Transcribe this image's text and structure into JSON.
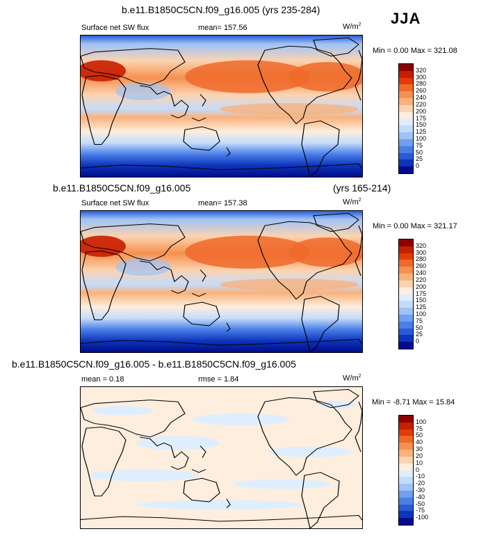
{
  "season": "JJA",
  "units_base": "W/m",
  "units_exp": "2",
  "panel1": {
    "title": "b.e11.B1850C5CN.f09_g16.005 (yrs 235-284)",
    "variable": "Surface net SW flux",
    "mean": "mean= 157.56",
    "minmax": "Min =   0.00 Max = 321.08"
  },
  "panel2": {
    "title_left": "b.e11.B1850C5CN.f09_g16.005",
    "title_right": "(yrs 165-214)",
    "variable": "Surface net SW flux",
    "mean": "mean= 157.38",
    "minmax": "Min =   0.00 Max = 321.17"
  },
  "panel3": {
    "title": "b.e11.B1850C5CN.f09_g16.005 - b.e11.B1850C5CN.f09_g16.005",
    "mean": "mean =   0.18",
    "rmse": "rmse =   1.84",
    "minmax": "Min =  -8.71 Max =  15.84"
  },
  "colorbar_abs": {
    "labels": [
      "320",
      "300",
      "280",
      "260",
      "240",
      "220",
      "200",
      "175",
      "150",
      "125",
      "100",
      "75",
      "50",
      "25",
      "0"
    ],
    "colors": [
      "#8b0000",
      "#c81e00",
      "#e03c0a",
      "#ef6a2a",
      "#f69050",
      "#f9b27c",
      "#fcd3b0",
      "#fdeede",
      "#dfeeff",
      "#c4dcfc",
      "#9fc3f7",
      "#6f9ff0",
      "#4a7ee8",
      "#2a5ad6",
      "#0d35bb",
      "#000c8b"
    ]
  },
  "colorbar_diff": {
    "labels": [
      "100",
      "75",
      "50",
      "40",
      "30",
      "20",
      "10",
      "0",
      "-10",
      "-20",
      "-30",
      "-40",
      "-50",
      "-75",
      "-100"
    ],
    "colors": [
      "#8b0000",
      "#c81e00",
      "#e03c0a",
      "#ef6a2a",
      "#f69050",
      "#f9b27c",
      "#fcd3b0",
      "#fdeede",
      "#dfeeff",
      "#c4dcfc",
      "#9fc3f7",
      "#6f9ff0",
      "#4a7ee8",
      "#2a5ad6",
      "#0d35bb",
      "#000c8b"
    ]
  }
}
